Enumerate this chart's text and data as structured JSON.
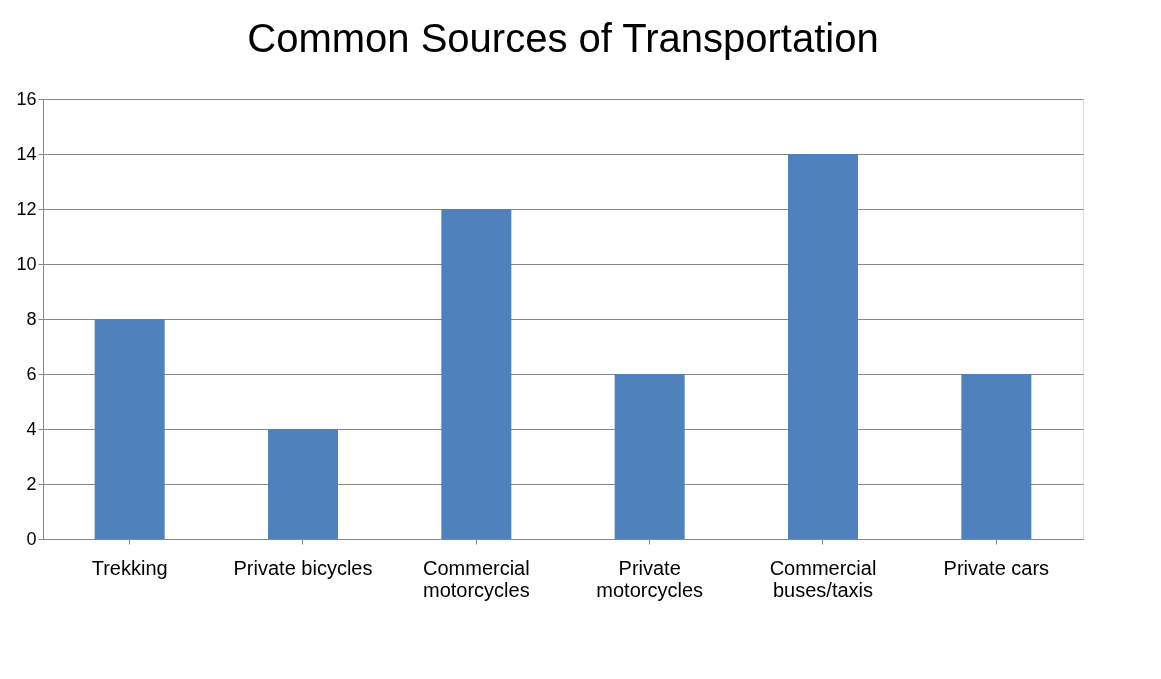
{
  "chart_data": {
    "type": "bar",
    "title": "Common Sources of Transportation",
    "categories": [
      "Trekking",
      "Private bicycles",
      "Commercial motorcycles",
      "Private motorcycles",
      "Commercial buses/taxis",
      "Private cars"
    ],
    "values": [
      8,
      4,
      12,
      6,
      14,
      6
    ],
    "color": "#4f81bd",
    "ylim": [
      0,
      16
    ],
    "yticks": [
      0,
      2,
      4,
      6,
      8,
      10,
      12,
      14,
      16
    ],
    "grid": "y"
  }
}
